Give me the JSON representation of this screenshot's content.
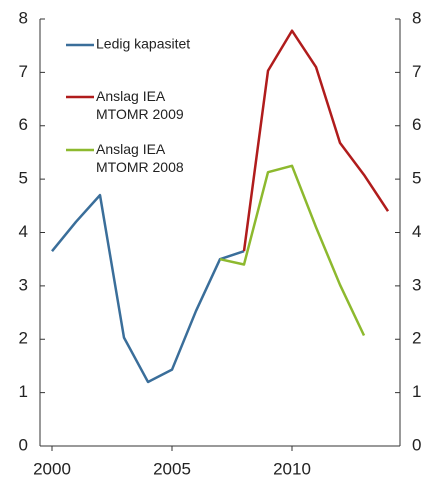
{
  "chart_data": {
    "type": "line",
    "x": [
      2000,
      2001,
      2002,
      2003,
      2004,
      2005,
      2006,
      2007,
      2008,
      2009,
      2010,
      2011,
      2012,
      2013,
      2014
    ],
    "series": [
      {
        "name": "Ledig kapasitet",
        "color": "#3a6e9a",
        "values": [
          3.65,
          4.2,
          4.7,
          2.03,
          1.2,
          1.43,
          2.53,
          3.5,
          3.65,
          null,
          null,
          null,
          null,
          null,
          null
        ]
      },
      {
        "name": "Anslag IEA\nMTOMR 2009",
        "color": "#b01c1c",
        "values": [
          null,
          null,
          null,
          null,
          null,
          null,
          null,
          null,
          3.65,
          7.03,
          7.78,
          7.1,
          5.68,
          5.08,
          4.4
        ]
      },
      {
        "name": "Anslag IEA\nMTOMR 2008",
        "color": "#8db92e",
        "values": [
          null,
          null,
          null,
          null,
          null,
          null,
          null,
          3.5,
          3.4,
          5.13,
          5.25,
          4.1,
          3.02,
          2.07,
          null
        ]
      }
    ],
    "xlim": [
      1999.5,
      2014.5
    ],
    "xticks": [
      2000,
      2005,
      2010
    ],
    "ylim": [
      0,
      8
    ],
    "yticks": [
      0,
      1,
      2,
      3,
      4,
      5,
      6,
      7,
      8
    ],
    "y2lim": [
      0,
      8
    ],
    "y2ticks": [
      0,
      1,
      2,
      3,
      4,
      5,
      6,
      7,
      8
    ],
    "legend": "upper left"
  }
}
